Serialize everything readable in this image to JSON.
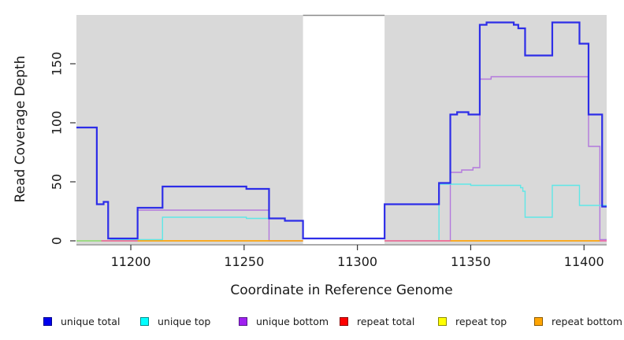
{
  "chart_data": {
    "type": "line",
    "subtype": "step-coverage-plot",
    "title": "",
    "xlabel": "Coordinate in Reference Genome",
    "ylabel": "Read Coverage Depth",
    "xlim": [
      11176,
      11410
    ],
    "ylim": [
      0,
      191
    ],
    "x_ticks": [
      "11200",
      "11250",
      "11300",
      "11350",
      "11400"
    ],
    "x_tick_values": [
      11200,
      11250,
      11300,
      11350,
      11400
    ],
    "y_ticks": [
      "0",
      "50",
      "100",
      "150"
    ],
    "y_tick_values": [
      0,
      50,
      100,
      150
    ],
    "grid": false,
    "panel_background": "#d9d9d9",
    "masked_region": {
      "from": 11276,
      "to": 11312
    },
    "draw_order": [
      "repeat top",
      "repeat total",
      "unique bottom",
      "unique top",
      "repeat bottom",
      "unique total"
    ],
    "series": [
      {
        "name": "unique total",
        "color": "#2d2de8",
        "legend_fill": "#0000ee",
        "legend_border": "#00008b",
        "width": 2.2,
        "segments": [
          {
            "steps": [
              [
                11176,
                96
              ],
              [
                11185,
                31
              ],
              [
                11188,
                33
              ],
              [
                11190,
                2
              ],
              [
                11203,
                28
              ],
              [
                11214,
                46
              ],
              [
                11251,
                44
              ],
              [
                11261,
                19
              ],
              [
                11268,
                17
              ],
              [
                11276,
                2
              ],
              [
                11312,
                31
              ],
              [
                11336,
                49
              ],
              [
                11341,
                107
              ],
              [
                11344,
                109
              ],
              [
                11349,
                107
              ],
              [
                11354,
                183
              ],
              [
                11357,
                185
              ],
              [
                11369,
                183
              ],
              [
                11371,
                180
              ],
              [
                11374,
                157
              ],
              [
                11386,
                185
              ],
              [
                11398,
                167
              ],
              [
                11402,
                107
              ],
              [
                11408,
                29
              ]
            ],
            "end": 11410
          }
        ]
      },
      {
        "name": "unique top",
        "color": "#5fe7e7",
        "legend_fill": "#00ffff",
        "legend_border": "#008b8b",
        "width": 1.4,
        "segments": [
          {
            "steps": [
              [
                11176,
                0
              ],
              [
                11191,
                1
              ],
              [
                11214,
                20
              ],
              [
                11251,
                19
              ],
              [
                11268,
                17
              ]
            ],
            "end": 11276
          },
          {
            "steps": [
              [
                11312,
                0
              ],
              [
                11336,
                48
              ],
              [
                11350,
                47
              ],
              [
                11372,
                45
              ],
              [
                11373,
                42
              ],
              [
                11374,
                20
              ],
              [
                11386,
                47
              ],
              [
                11398,
                30
              ]
            ],
            "end": 11410
          }
        ]
      },
      {
        "name": "unique bottom",
        "color": "#b378dd",
        "legend_fill": "#a020f0",
        "legend_border": "#551a8b",
        "width": 1.4,
        "segments": [
          {
            "steps": [
              [
                11176,
                0
              ],
              [
                11203,
                26
              ],
              [
                11261,
                0
              ]
            ],
            "end": 11276
          },
          {
            "steps": [
              [
                11312,
                0
              ],
              [
                11341,
                58
              ],
              [
                11346,
                60
              ],
              [
                11351,
                62
              ],
              [
                11354,
                137
              ],
              [
                11359,
                139
              ],
              [
                11402,
                80
              ],
              [
                11407,
                1
              ]
            ],
            "end": 11410
          }
        ]
      },
      {
        "name": "repeat total",
        "color": "#e8356b",
        "legend_fill": "#ff0000",
        "legend_border": "#8b0000",
        "width": 1.2,
        "segments": [
          {
            "steps": [
              [
                11176,
                0
              ]
            ],
            "end": 11276
          },
          {
            "steps": [
              [
                11312,
                0
              ]
            ],
            "end": 11410
          }
        ]
      },
      {
        "name": "repeat top",
        "color": "#ffff00",
        "legend_fill": "#ffff00",
        "legend_border": "#8b8b00",
        "width": 1.2,
        "segments": [
          {
            "steps": [
              [
                11176,
                0
              ]
            ],
            "end": 11276
          },
          {
            "steps": [
              [
                11312,
                0
              ]
            ],
            "end": 11410
          }
        ]
      },
      {
        "name": "repeat bottom",
        "color": "#ffa500",
        "legend_fill": "#ffa500",
        "legend_border": "#8b5a00",
        "width": 1.6,
        "segments": [
          {
            "steps": [
              [
                11176,
                0
              ]
            ],
            "end": 11276
          },
          {
            "steps": [
              [
                11312,
                0
              ]
            ],
            "end": 11407
          }
        ]
      }
    ],
    "baseline_overlays": [
      {
        "from": 11176,
        "to": 11187,
        "color": "#90e890"
      },
      {
        "from": 11187,
        "to": 11203,
        "color": "#ee68b0"
      },
      {
        "from": 11312,
        "to": 11341,
        "color": "#ee68b0"
      },
      {
        "from": 11407,
        "to": 11410,
        "color": "#ee68b0"
      }
    ],
    "legend": {
      "position": "bottom",
      "entries": [
        {
          "label": "unique total"
        },
        {
          "label": "unique top"
        },
        {
          "label": "unique bottom"
        },
        {
          "label": "repeat total"
        },
        {
          "label": "repeat top"
        },
        {
          "label": "repeat bottom"
        }
      ]
    }
  }
}
